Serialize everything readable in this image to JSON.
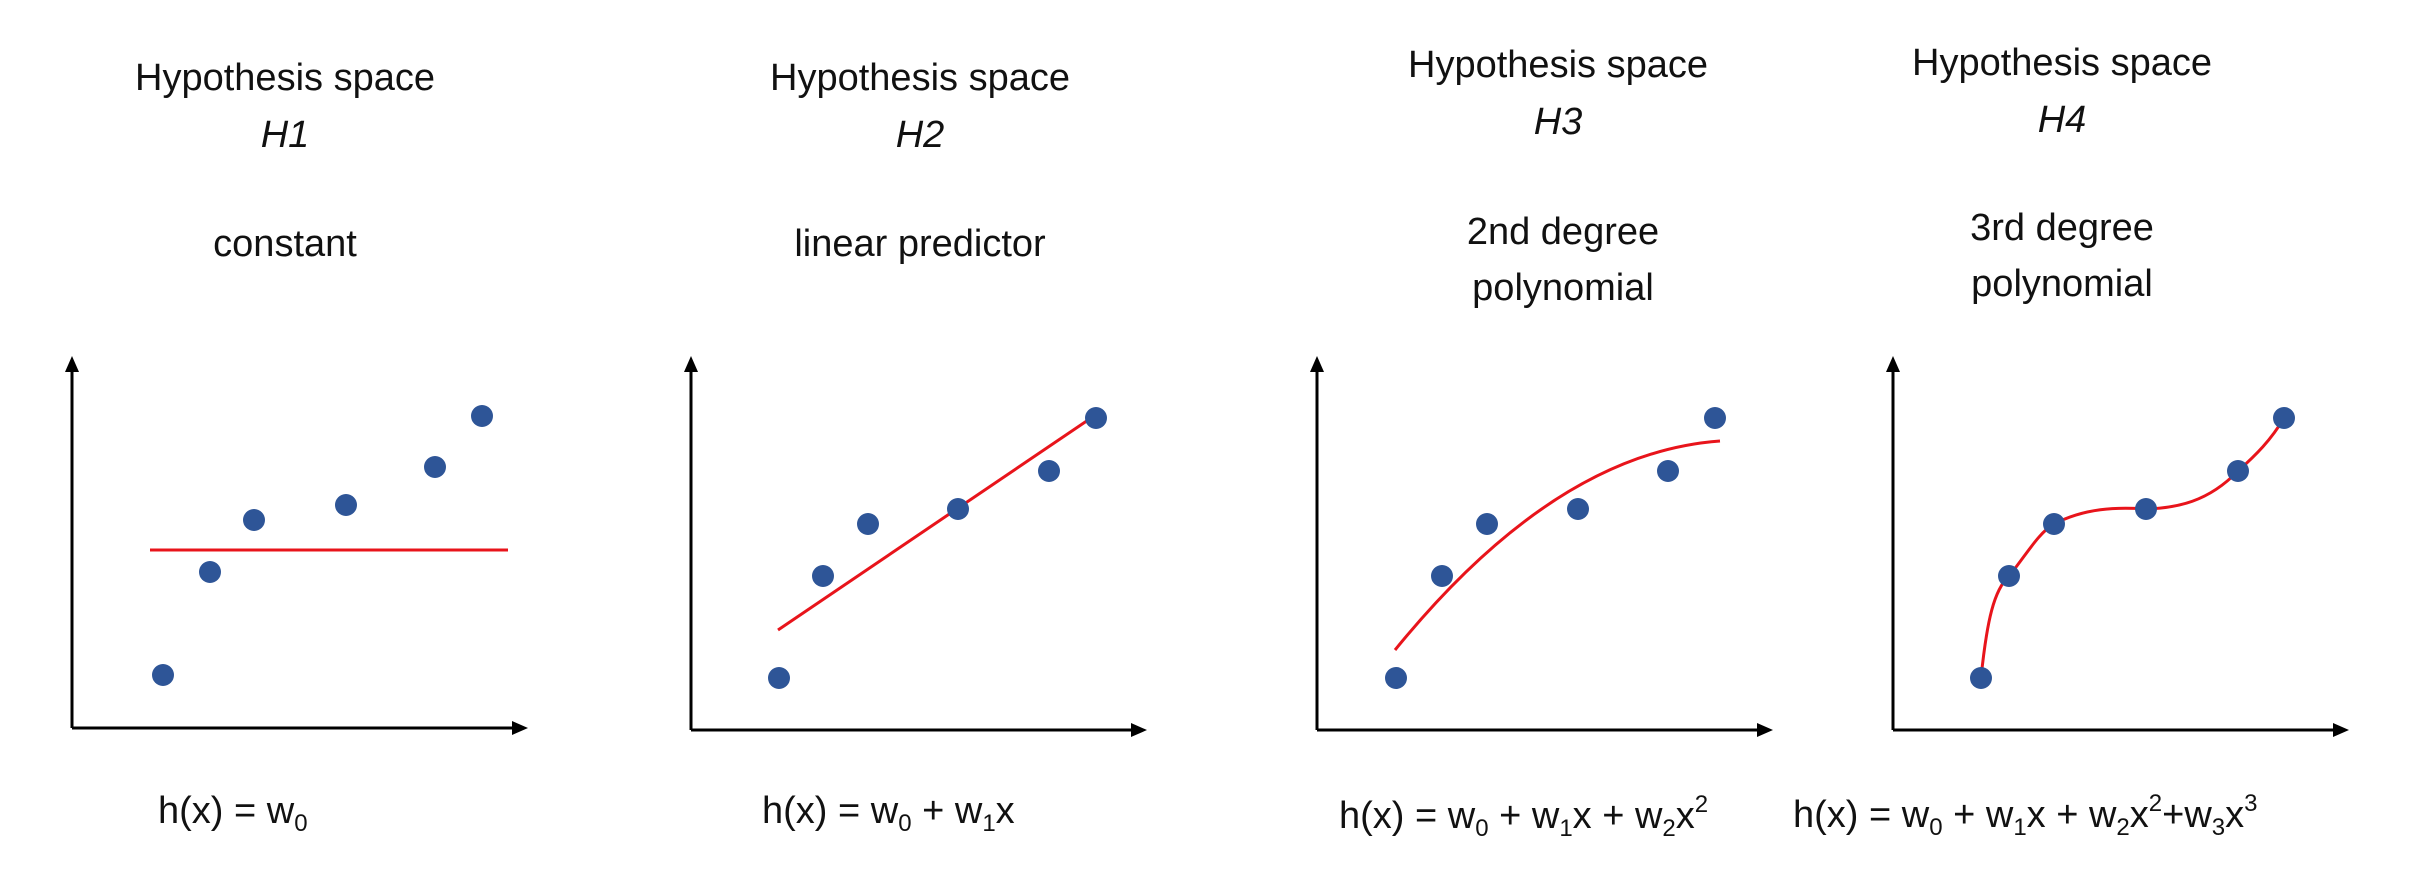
{
  "panels": [
    {
      "heading": "Hypothesis space",
      "space": "H1",
      "description": [
        "constant"
      ],
      "formula_parts": [
        "h(x) = w",
        "0"
      ]
    },
    {
      "heading": "Hypothesis space",
      "space": "H2",
      "description": [
        "linear predictor"
      ],
      "formula_parts": [
        "h(x) = w",
        "0",
        " + w",
        "1",
        "x"
      ]
    },
    {
      "heading": "Hypothesis space",
      "space": "H3",
      "description": [
        "2nd degree",
        "polynomial"
      ],
      "formula_parts": [
        "h(x) = w",
        "0",
        " + w",
        "1",
        "x + w",
        "2",
        "x",
        "2"
      ]
    },
    {
      "heading": "Hypothesis space",
      "space": "H4",
      "description": [
        "3rd degree",
        "polynomial"
      ],
      "formula_parts": [
        "h(x) = w",
        "0",
        " + w",
        "1",
        "x + w",
        "2",
        "x",
        "2",
        "+w",
        "3",
        "x",
        "3"
      ]
    }
  ],
  "chart_data": {
    "type": "scatter",
    "points": [
      [
        1,
        1
      ],
      [
        2,
        3
      ],
      [
        3,
        4
      ],
      [
        4,
        4.3
      ],
      [
        5,
        5
      ],
      [
        6,
        6
      ]
    ],
    "fit_curves": [
      "constant",
      "linear",
      "quadratic",
      "cubic"
    ],
    "colors": {
      "points": "#2e5597",
      "fit": "#e8141b",
      "axes": "#000000"
    }
  }
}
